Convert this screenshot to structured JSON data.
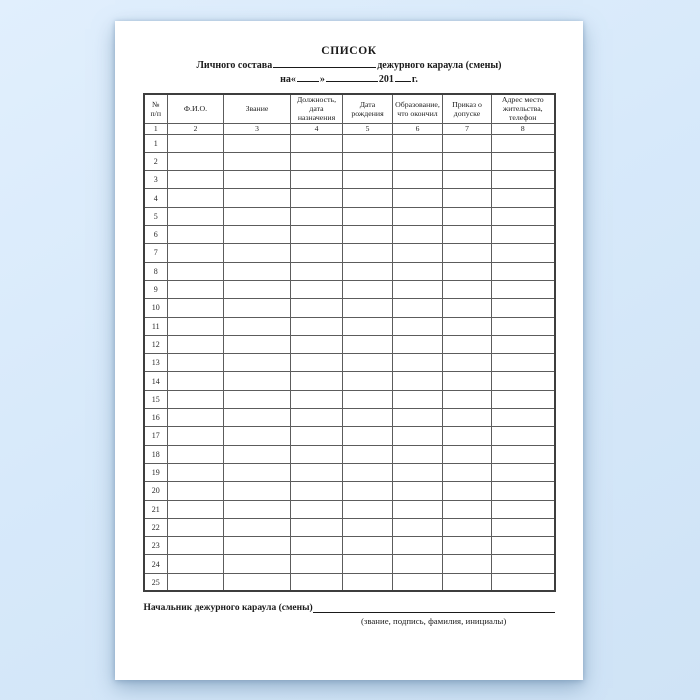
{
  "document": {
    "title": "СПИСОК",
    "subtitle_prefix": "Личного состава",
    "subtitle_suffix": "дежурного караула (смены)",
    "date_prefix": "на«",
    "date_close_quote": "»",
    "date_century": "201",
    "date_suffix": "г."
  },
  "table": {
    "columns": [
      {
        "num": "1",
        "label": "№\nп/п"
      },
      {
        "num": "2",
        "label": "Ф.И.О."
      },
      {
        "num": "3",
        "label": "Звание"
      },
      {
        "num": "4",
        "label": "Должность,\nдата\nназначения"
      },
      {
        "num": "5",
        "label": "Дата\nрождения"
      },
      {
        "num": "6",
        "label": "Образование,\nчто окончил"
      },
      {
        "num": "7",
        "label": "Приказ о\nдопуске"
      },
      {
        "num": "8",
        "label": "Адрес место\nжительства,\nтелефон"
      }
    ],
    "row_numbers": [
      "1",
      "2",
      "3",
      "4",
      "5",
      "6",
      "7",
      "8",
      "9",
      "10",
      "11",
      "12",
      "13",
      "14",
      "15",
      "16",
      "17",
      "18",
      "19",
      "20",
      "21",
      "22",
      "23",
      "24",
      "25"
    ]
  },
  "footer": {
    "signature_label": "Начальник дежурного караула (смены)",
    "signature_caption": "(звание, подпись, фамилия, инициалы)"
  }
}
